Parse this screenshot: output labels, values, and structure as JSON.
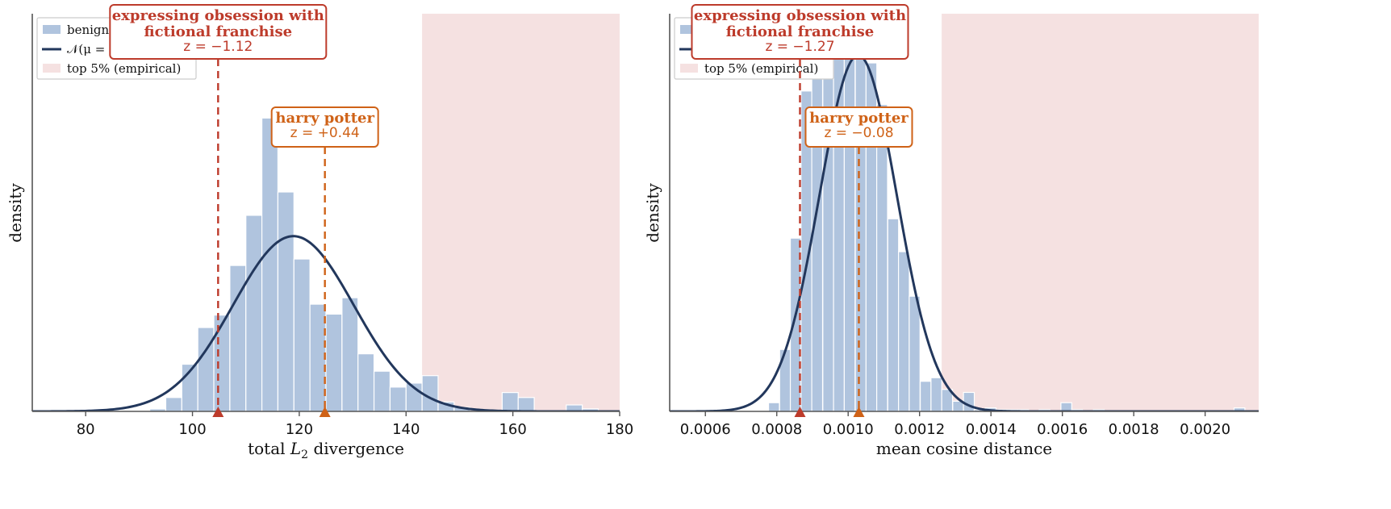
{
  "colors": {
    "histogram": "#b0c4de",
    "normal_curve": "#22375c",
    "top5_shade": "#f5e1e1",
    "annotation_red": "#bd3b2b",
    "annotation_orange": "#cf6217",
    "axis": "#555555"
  },
  "legend": {
    "histogram_label": "benign",
    "curve_label": "𝒩(μ =",
    "shade_label": "top 5% (empirical)"
  },
  "chart_data": [
    {
      "type": "bar",
      "xlabel": "total",
      "xlabel_math": "L",
      "xlabel_sub": "2",
      "xlabel_suffix": "divergence",
      "ylabel": "density",
      "xlim": [
        70,
        180
      ],
      "xticks": [
        80,
        100,
        120,
        140,
        160,
        180
      ],
      "xtick_labels": [
        "80",
        "100",
        "120",
        "140",
        "160",
        "180"
      ],
      "top5_start": 143,
      "histogram": {
        "bin_width": 3,
        "bin_starts": [
          92,
          95,
          98,
          101,
          104,
          107,
          110,
          113,
          116,
          119,
          122,
          125,
          128,
          131,
          134,
          137,
          140,
          143,
          146,
          149,
          152,
          155,
          158,
          161,
          164,
          167,
          170,
          173
        ],
        "densities": [
          0.0005,
          0.0028,
          0.0095,
          0.0169,
          0.0194,
          0.0294,
          0.0395,
          0.0591,
          0.0442,
          0.0307,
          0.0216,
          0.0196,
          0.0229,
          0.0116,
          0.0081,
          0.0049,
          0.0057,
          0.0072,
          0.0019,
          0.0008,
          0.0,
          0.0,
          0.0038,
          0.0028,
          0.0,
          0.0,
          0.0013,
          0.0005
        ]
      },
      "normal": {
        "mu": 118.9,
        "sigma": 11.3
      },
      "ylim": [
        0,
        0.078
      ],
      "markers": [
        {
          "id": "red",
          "x": 104.8,
          "title_lines": [
            "expressing obsession with",
            "fictional franchise"
          ],
          "z_label": "z = −1.12"
        },
        {
          "id": "orange",
          "x": 124.8,
          "title_lines": [
            "harry potter"
          ],
          "z_label": "z = +0.44"
        }
      ]
    },
    {
      "type": "bar",
      "xlabel": "mean cosine distance",
      "ylabel": "density",
      "xlim": [
        0.0005,
        0.00215
      ],
      "xticks": [
        0.0006,
        0.0008,
        0.001,
        0.0012,
        0.0014,
        0.0016,
        0.0018,
        0.002
      ],
      "xtick_labels": [
        "0.0006",
        "0.0008",
        "0.0010",
        "0.0012",
        "0.0014",
        "0.0016",
        "0.0018",
        "0.0020"
      ],
      "top5_start": 0.001262,
      "histogram": {
        "bin_width": 3.03e-05,
        "bin_starts": [
          0.000777,
          0.000808,
          0.000838,
          0.000868,
          0.000898,
          0.000929,
          0.000959,
          0.000989,
          0.00102,
          0.00105,
          0.00108,
          0.001111,
          0.001141,
          0.001171,
          0.001202,
          0.001232,
          0.001262,
          0.001293,
          0.001323,
          0.001353,
          0.001384,
          0.001414,
          0.001444,
          0.001475,
          0.001535,
          0.001596,
          0.001626,
          0.001687,
          0.002081
        ],
        "densities": [
          90,
          640,
          1790,
          3310,
          4000,
          4000,
          4000,
          4000,
          4000,
          3600,
          3170,
          1990,
          1650,
          1190,
          311,
          348,
          227,
          105,
          196,
          18,
          36,
          18,
          18,
          18,
          18,
          90,
          18,
          18,
          36
        ]
      },
      "normal": {
        "mu": 0.001028,
        "sigma": 0.0001084
      },
      "ylim": [
        0,
        4000
      ],
      "markers": [
        {
          "id": "red",
          "x": 0.000865,
          "title_lines": [
            "expressing obsession with",
            "fictional franchise"
          ],
          "z_label": "z = −1.27"
        },
        {
          "id": "orange",
          "x": 0.00103,
          "title_lines": [
            "harry potter"
          ],
          "z_label": "z = −0.08"
        }
      ]
    }
  ]
}
